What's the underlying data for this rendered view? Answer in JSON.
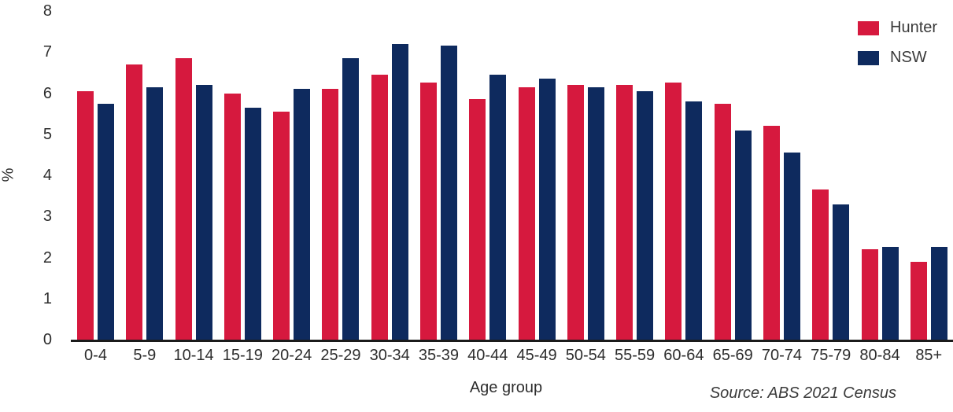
{
  "chart_data": {
    "type": "bar",
    "title": "",
    "xlabel": "Age group",
    "ylabel": "%",
    "ylim": [
      0,
      8
    ],
    "yticks": [
      0,
      1,
      2,
      3,
      4,
      5,
      6,
      7,
      8
    ],
    "grid": false,
    "legend_position": "top-right",
    "source": "Source: ABS 2021 Census",
    "categories": [
      "0-4",
      "5-9",
      "10-14",
      "15-19",
      "20-24",
      "25-29",
      "30-34",
      "35-39",
      "40-44",
      "45-49",
      "50-54",
      "55-59",
      "60-64",
      "65-69",
      "70-74",
      "75-79",
      "80-84",
      "85+"
    ],
    "series": [
      {
        "name": "Hunter",
        "color": "#d6193e",
        "values": [
          6.05,
          6.7,
          6.85,
          6.0,
          5.55,
          6.1,
          6.45,
          6.25,
          5.85,
          6.15,
          6.2,
          6.2,
          6.25,
          5.75,
          5.2,
          3.65,
          2.2,
          1.9
        ]
      },
      {
        "name": "NSW",
        "color": "#0e2a5e",
        "values": [
          5.75,
          6.15,
          6.2,
          5.65,
          6.1,
          6.85,
          7.2,
          7.15,
          6.45,
          6.35,
          6.15,
          6.05,
          5.8,
          5.1,
          4.55,
          3.3,
          2.25,
          2.25
        ]
      }
    ],
    "axis_color": "#1b1b1b",
    "text_color": "#2d2d2d"
  }
}
